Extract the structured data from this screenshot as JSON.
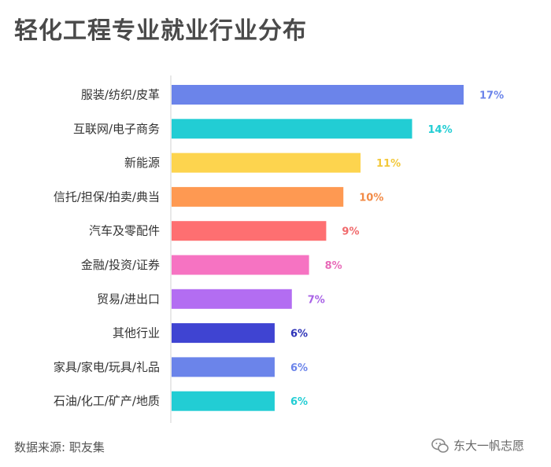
{
  "title": "轻化工程专业就业行业分布",
  "source": "数据来源: 职友集",
  "watermark": "东大一帆志愿",
  "chart_data": {
    "type": "bar",
    "orientation": "horizontal",
    "categories": [
      "服装/纺织/皮革",
      "互联网/电子商务",
      "新能源",
      "信托/担保/拍卖/典当",
      "汽车及零配件",
      "金融/投资/证券",
      "贸易/进出口",
      "其他行业",
      "家具/家电/玩具/礼品",
      "石油/化工/矿产/地质"
    ],
    "values": [
      17,
      14,
      11,
      10,
      9,
      8,
      7,
      6,
      6,
      6
    ],
    "labels": [
      "17%",
      "14%",
      "11%",
      "10%",
      "9%",
      "8%",
      "7%",
      "6%",
      "6%",
      "6%"
    ],
    "colors": [
      "#6b84ea",
      "#22cdd4",
      "#fdd44e",
      "#fe9952",
      "#fe6f71",
      "#f673c2",
      "#b36df2",
      "#3f44d2",
      "#6b84ea",
      "#22cdd4"
    ],
    "label_colors": [
      "#6b84ea",
      "#22cdd4",
      "#f2c83a",
      "#f28a45",
      "#f06a6c",
      "#e86ab8",
      "#a862e6",
      "#2e33b8",
      "#6b84ea",
      "#22cdd4"
    ],
    "xlim": [
      0,
      17
    ],
    "grid": false
  }
}
